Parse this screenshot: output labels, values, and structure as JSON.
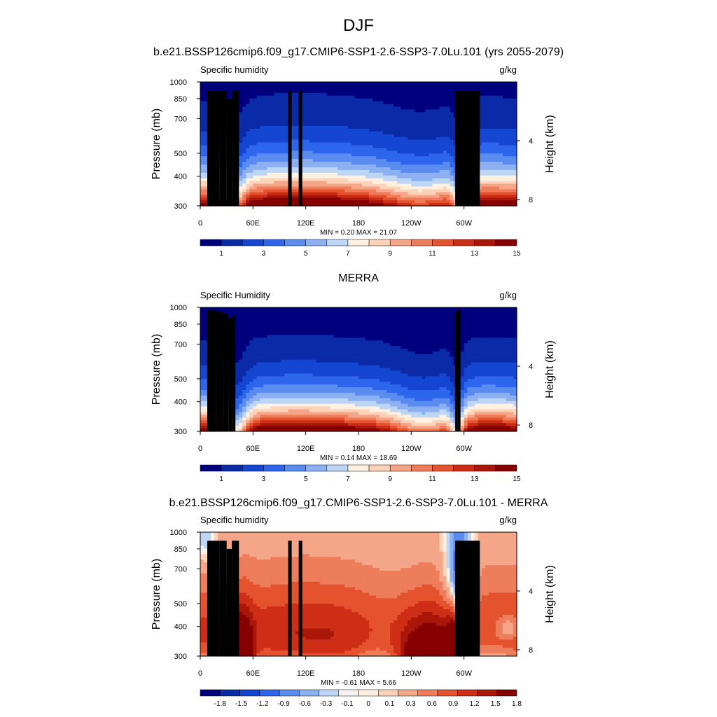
{
  "figure_title": "DJF",
  "colors": {
    "absolute_levels": [
      "#00007f",
      "#0a2aa8",
      "#1446d2",
      "#2d66ec",
      "#5a8cf0",
      "#8cb0f2",
      "#bed6f6",
      "#fff0e0",
      "#fcd2b8",
      "#f5a688",
      "#ee7d5c",
      "#e4522e",
      "#ce2e16",
      "#aa1608",
      "#860000"
    ],
    "difference_levels": [
      "#00007f",
      "#0a2aa8",
      "#1446d2",
      "#2d66ec",
      "#5a8cf0",
      "#8cb0f2",
      "#bed6f6",
      "#f6f2f2",
      "#fff0e0",
      "#fcd2b8",
      "#f5a688",
      "#ee7d5c",
      "#e4522e",
      "#ce2e16",
      "#aa1608",
      "#860000"
    ],
    "terrain": "#000000"
  },
  "chart_data": [
    {
      "type": "heatmap",
      "title": "b.e21.BSSP126cmip6.f09_g17.CMIP6-SSP1-2.6-SSP3-7.0Lu.101 (yrs 2055-2079)",
      "left_label": "Specific humidity",
      "units": "g/kg",
      "ylabel": "Pressure (mb)",
      "ylabel_right": "Height (km)",
      "y_ticks": [
        "300",
        "400",
        "500",
        "700",
        "850",
        "1000"
      ],
      "y_right_ticks": [
        "8",
        "4"
      ],
      "x_ticks": [
        "0",
        "60E",
        "120E",
        "180",
        "120W",
        "60W"
      ],
      "xlim": [
        0,
        360
      ],
      "ylim": [
        1000,
        300
      ],
      "stats": "MIN =   0.20  MAX =  21.07",
      "colorbar_labels": [
        "1",
        "3",
        "5",
        "7",
        "9",
        "11",
        "13",
        "15"
      ],
      "palette": "absolute_levels",
      "kind": "model"
    },
    {
      "type": "heatmap",
      "title": "MERRA",
      "left_label": "Specific Humidity",
      "units": "g/kg",
      "ylabel": "Pressure (mb)",
      "ylabel_right": "Height (km)",
      "y_ticks": [
        "300",
        "400",
        "500",
        "700",
        "850",
        "1000"
      ],
      "y_right_ticks": [
        "8",
        "4"
      ],
      "x_ticks": [
        "0",
        "60E",
        "120E",
        "180",
        "120W",
        "60W"
      ],
      "xlim": [
        0,
        360
      ],
      "ylim": [
        1000,
        300
      ],
      "stats": "MIN =   0.14  MAX =  18.69",
      "colorbar_labels": [
        "1",
        "3",
        "5",
        "7",
        "9",
        "11",
        "13",
        "15"
      ],
      "palette": "absolute_levels",
      "kind": "obs"
    },
    {
      "type": "heatmap",
      "title": "b.e21.BSSP126cmip6.f09_g17.CMIP6-SSP1-2.6-SSP3-7.0Lu.101 - MERRA",
      "left_label": "Specific humidity",
      "units": "g/kg",
      "ylabel": "Pressure (mb)",
      "ylabel_right": "Height (km)",
      "y_ticks": [
        "300",
        "400",
        "500",
        "700",
        "850",
        "1000"
      ],
      "y_right_ticks": [
        "8",
        "4"
      ],
      "x_ticks": [
        "0",
        "60E",
        "120E",
        "180",
        "120W",
        "60W"
      ],
      "xlim": [
        0,
        360
      ],
      "ylim": [
        1000,
        300
      ],
      "stats": "MIN =  -0.61  MAX =   5.66",
      "colorbar_labels": [
        "-1.8",
        "-1.5",
        "-1.2",
        "-0.9",
        "-0.6",
        "-0.3",
        "-0.1",
        "0",
        "0.1",
        "0.3",
        "0.6",
        "0.9",
        "1.2",
        "1.5",
        "1.8"
      ],
      "palette": "difference_levels",
      "kind": "diff"
    }
  ]
}
